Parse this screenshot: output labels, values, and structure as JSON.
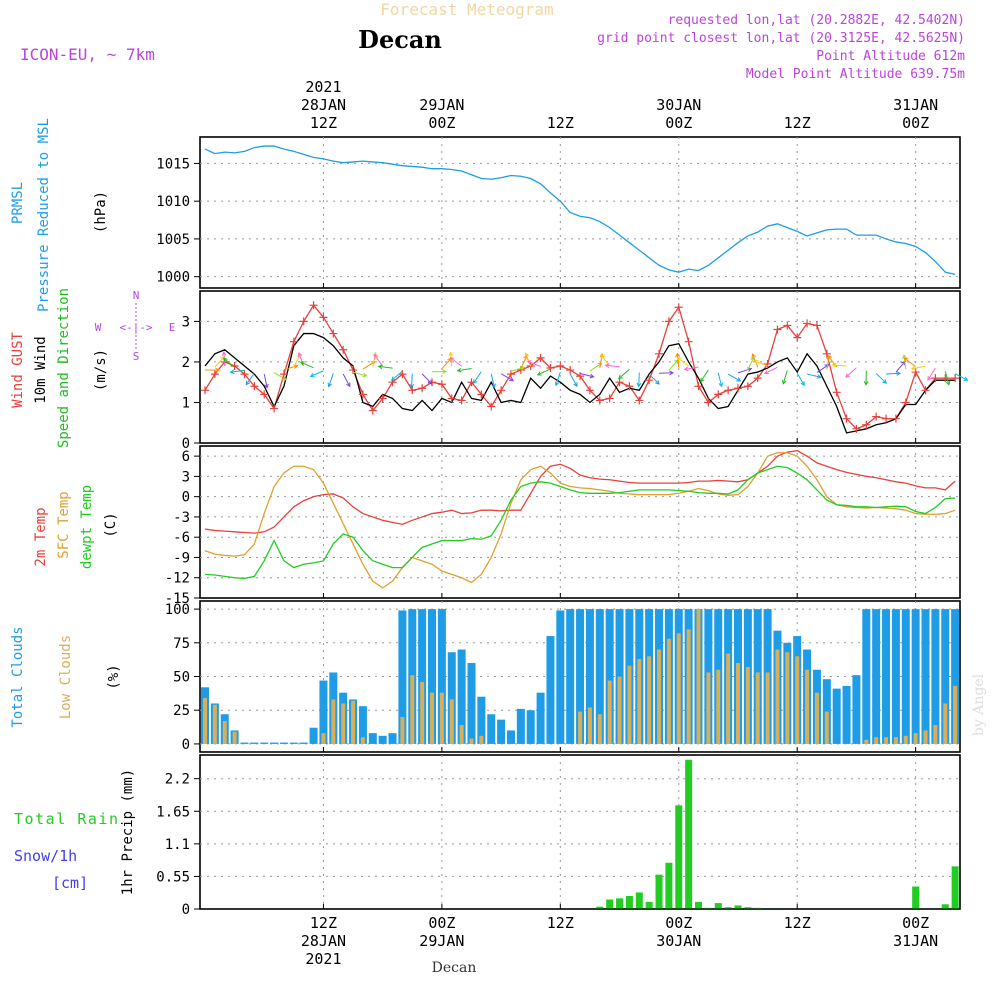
{
  "header": {
    "title": "Forecast Meteogram",
    "location": "Decan",
    "model": "ICON-EU, ~ 7km",
    "info": [
      "requested lon,lat (20.2882E, 42.5402N)",
      "grid point closest lon,lat (20.3125E, 42.5625N)",
      "Point Altitude 612m",
      "Model Point Altitude 639.75m"
    ],
    "credit": "by Angel",
    "bottom_label": "Decan"
  },
  "colors": {
    "pressure": "#1e9de6",
    "gust": "#e8403c",
    "wind": "#000000",
    "dir": "#22bb22",
    "temp2m": "#e8403c",
    "sfc": "#dfa030",
    "dewpt": "#22cc22",
    "total_clouds": "#1e9de6",
    "low_clouds": "#d8ae5a",
    "rain": "#22cc22",
    "snow": "#4040ee",
    "dir_label": "#bb44dd",
    "info": "#bb44dd",
    "title": "#f2d6a2"
  },
  "time_axis": {
    "top_labels": [
      {
        "t": 12,
        "lines": [
          "2021",
          "28JAN",
          "12Z"
        ]
      },
      {
        "t": 24,
        "lines": [
          "29JAN",
          "00Z"
        ]
      },
      {
        "t": 36,
        "lines": [
          "12Z"
        ]
      },
      {
        "t": 48,
        "lines": [
          "30JAN",
          "00Z"
        ]
      },
      {
        "t": 60,
        "lines": [
          "12Z"
        ]
      },
      {
        "t": 72,
        "lines": [
          "31JAN",
          "00Z"
        ]
      }
    ],
    "bottom_labels": [
      {
        "t": 12,
        "lines": [
          "12Z",
          "28JAN",
          "2021"
        ]
      },
      {
        "t": 24,
        "lines": [
          "00Z",
          "29JAN"
        ]
      },
      {
        "t": 36,
        "lines": [
          "12Z"
        ]
      },
      {
        "t": 48,
        "lines": [
          "00Z",
          "30JAN"
        ]
      },
      {
        "t": 60,
        "lines": [
          "12Z"
        ]
      },
      {
        "t": 72,
        "lines": [
          "00Z",
          "31JAN"
        ]
      }
    ]
  },
  "chart_data": [
    {
      "type": "line",
      "panel": "pressure",
      "labels": [
        "PRMSL",
        "Pressure Reduced to MSL"
      ],
      "ylabel": "(hPa)",
      "yticks": [
        1000,
        1005,
        1010,
        1015
      ],
      "ylim": [
        998.5,
        1018.5
      ],
      "x": [
        0,
        1,
        2,
        3,
        4,
        5,
        6,
        7,
        8,
        9,
        10,
        11,
        12,
        13,
        14,
        15,
        16,
        17,
        18,
        19,
        20,
        21,
        22,
        23,
        24,
        25,
        26,
        27,
        28,
        29,
        30,
        31,
        32,
        33,
        34,
        35,
        36,
        37,
        38,
        39,
        40,
        41,
        42,
        43,
        44,
        45,
        46,
        47,
        48,
        49,
        50,
        51,
        52,
        53,
        54,
        55,
        56,
        57,
        58,
        59,
        60,
        61,
        62,
        63,
        64,
        65,
        66,
        67,
        68,
        69,
        70,
        71,
        72,
        73,
        74,
        75,
        76
      ],
      "series": [
        {
          "values": [
            1016.9,
            1016.3,
            1016.5,
            1016.4,
            1016.6,
            1017.1,
            1017.3,
            1017.3,
            1016.9,
            1016.6,
            1016.2,
            1015.8,
            1015.6,
            1015.3,
            1015.1,
            1015.2,
            1015.3,
            1015.2,
            1015.1,
            1014.9,
            1014.7,
            1014.6,
            1014.5,
            1014.3,
            1014.3,
            1014.2,
            1014.0,
            1013.5,
            1013.0,
            1012.9,
            1013.1,
            1013.4,
            1013.3,
            1013.0,
            1012.3,
            1011.1,
            1010.0,
            1008.5,
            1008.0,
            1007.8,
            1007.3,
            1006.5,
            1005.5,
            1004.5,
            1003.5,
            1002.5,
            1001.5,
            1000.9,
            1000.6,
            1001.0,
            1000.8,
            1001.5,
            1002.5,
            1003.5,
            1004.5,
            1005.4,
            1005.9,
            1006.7,
            1007.0,
            1006.5,
            1006.0,
            1005.4,
            1005.8,
            1006.2,
            1006.3,
            1006.3,
            1005.5,
            1005.5,
            1005.5,
            1005.0,
            1004.6,
            1004.4,
            1004.0,
            1003.2,
            1002.0,
            1000.6,
            1000.3
          ]
        }
      ]
    },
    {
      "type": "line",
      "panel": "wind",
      "labels": [
        "Wind GUST",
        "10m Wind",
        "Speed and Direction"
      ],
      "ylabel": "(m/s)",
      "yticks": [
        0,
        1,
        2,
        3
      ],
      "ylim": [
        0,
        3.75
      ],
      "dir_legend": {
        "n": "N",
        "s": "S",
        "w": "W",
        "e": "E",
        "arrows": "<-|->"
      },
      "x": [
        0,
        1,
        2,
        3,
        4,
        5,
        6,
        7,
        8,
        9,
        10,
        11,
        12,
        13,
        14,
        15,
        16,
        17,
        18,
        19,
        20,
        21,
        22,
        23,
        24,
        25,
        26,
        27,
        28,
        29,
        30,
        31,
        32,
        33,
        34,
        35,
        36,
        37,
        38,
        39,
        40,
        41,
        42,
        43,
        44,
        45,
        46,
        47,
        48,
        49,
        50,
        51,
        52,
        53,
        54,
        55,
        56,
        57,
        58,
        59,
        60,
        61,
        62,
        63,
        64,
        65,
        66,
        67,
        68,
        69,
        70,
        71,
        72,
        73,
        74,
        75,
        76
      ],
      "series": [
        {
          "name": "Wind GUST",
          "values": [
            1.3,
            1.7,
            2.0,
            1.9,
            1.7,
            1.4,
            1.2,
            0.85,
            1.7,
            2.5,
            3.0,
            3.4,
            3.1,
            2.7,
            2.3,
            1.8,
            1.2,
            0.8,
            1.1,
            1.5,
            1.7,
            1.3,
            1.35,
            1.5,
            1.45,
            1.1,
            1.05,
            1.5,
            1.2,
            0.9,
            1.3,
            1.7,
            1.8,
            1.9,
            2.1,
            1.85,
            1.9,
            1.8,
            1.65,
            1.3,
            1.05,
            1.1,
            1.5,
            1.4,
            1.05,
            1.55,
            2.2,
            3.0,
            3.35,
            2.5,
            1.4,
            1.0,
            1.2,
            1.3,
            1.35,
            1.4,
            1.6,
            1.95,
            2.8,
            2.9,
            2.6,
            2.95,
            2.9,
            2.2,
            1.25,
            0.6,
            0.35,
            0.45,
            0.65,
            0.6,
            0.6,
            1.0,
            1.75,
            1.3,
            1.6,
            1.6,
            1.6
          ]
        },
        {
          "name": "10m Wind",
          "values": [
            1.9,
            2.2,
            2.3,
            2.1,
            1.9,
            1.7,
            1.4,
            0.9,
            1.4,
            2.4,
            2.7,
            2.7,
            2.6,
            2.4,
            2.1,
            1.9,
            1.0,
            0.9,
            1.2,
            1.1,
            0.85,
            0.8,
            1.05,
            0.8,
            1.1,
            1.0,
            1.5,
            1.1,
            1.05,
            1.5,
            1.0,
            1.05,
            1.0,
            1.6,
            1.35,
            1.65,
            1.5,
            1.3,
            1.2,
            1.0,
            1.2,
            1.6,
            1.25,
            1.35,
            1.3,
            1.7,
            2.0,
            2.4,
            2.45,
            2.0,
            1.6,
            1.1,
            0.85,
            0.9,
            1.3,
            1.7,
            1.75,
            1.85,
            2.0,
            2.1,
            1.75,
            2.2,
            1.9,
            1.4,
            0.9,
            0.25,
            0.3,
            0.35,
            0.45,
            0.5,
            0.6,
            0.95,
            0.95,
            1.3,
            1.55,
            1.55,
            1.55
          ]
        }
      ]
    },
    {
      "type": "line",
      "panel": "temperature",
      "labels": [
        "2m Temp",
        "SFC Temp",
        "dewpt Temp"
      ],
      "ylabel": "(C)",
      "yticks": [
        -15,
        -12,
        -9,
        -6,
        -3,
        0,
        3,
        6
      ],
      "ylim": [
        -15,
        7.5
      ],
      "x": [
        0,
        1,
        2,
        3,
        4,
        5,
        6,
        7,
        8,
        9,
        10,
        11,
        12,
        13,
        14,
        15,
        16,
        17,
        18,
        19,
        20,
        21,
        22,
        23,
        24,
        25,
        26,
        27,
        28,
        29,
        30,
        31,
        32,
        33,
        34,
        35,
        36,
        37,
        38,
        39,
        40,
        41,
        42,
        43,
        44,
        45,
        46,
        47,
        48,
        49,
        50,
        51,
        52,
        53,
        54,
        55,
        56,
        57,
        58,
        59,
        60,
        61,
        62,
        63,
        64,
        65,
        66,
        67,
        68,
        69,
        70,
        71,
        72,
        73,
        74,
        75,
        76
      ],
      "series": [
        {
          "name": "2m Temp",
          "values": [
            -4.8,
            -5.0,
            -5.1,
            -5.2,
            -5.3,
            -5.4,
            -5.2,
            -4.5,
            -3.0,
            -1.5,
            -0.6,
            0.0,
            0.3,
            0.4,
            -0.2,
            -1.5,
            -2.5,
            -3.0,
            -3.5,
            -3.8,
            -4.1,
            -3.5,
            -3.0,
            -2.5,
            -2.3,
            -2.0,
            -2.5,
            -2.4,
            -2.0,
            -2.0,
            -2.1,
            -2.0,
            -2.0,
            0.5,
            3.0,
            4.5,
            4.8,
            4.2,
            3.2,
            2.8,
            2.6,
            2.5,
            2.3,
            2.1,
            2.0,
            2.0,
            2.0,
            2.0,
            2.0,
            2.1,
            2.3,
            2.3,
            2.4,
            2.3,
            2.2,
            2.5,
            3.5,
            4.5,
            6.0,
            6.6,
            6.8,
            6.0,
            5.0,
            4.5,
            4.0,
            3.6,
            3.3,
            3.0,
            2.8,
            2.5,
            2.2,
            2.0,
            1.6,
            1.3,
            1.3,
            1.0,
            2.3
          ]
        },
        {
          "name": "SFC Temp",
          "values": [
            -8.0,
            -8.5,
            -8.7,
            -8.8,
            -8.6,
            -7.0,
            -2.5,
            1.5,
            3.5,
            4.5,
            4.5,
            4.0,
            2.0,
            -1.0,
            -4.0,
            -7.0,
            -10.0,
            -12.5,
            -13.5,
            -12.5,
            -10.5,
            -9.0,
            -9.5,
            -10.0,
            -11.0,
            -11.5,
            -12.0,
            -12.7,
            -11.5,
            -9.0,
            -5.5,
            -1.0,
            2.5,
            4.0,
            4.5,
            3.5,
            2.0,
            1.5,
            1.3,
            1.2,
            1.0,
            0.8,
            0.5,
            0.4,
            0.3,
            0.3,
            0.3,
            0.3,
            0.5,
            0.8,
            1.2,
            0.9,
            0.4,
            0.2,
            0.3,
            1.5,
            3.5,
            6.0,
            6.5,
            6.5,
            6.0,
            4.5,
            2.5,
            0.0,
            -1.2,
            -1.5,
            -1.6,
            -1.7,
            -1.6,
            -1.7,
            -1.8,
            -2.0,
            -2.5,
            -2.6,
            -2.6,
            -2.5,
            -2.0
          ]
        },
        {
          "name": "dewpt Temp",
          "values": [
            -11.5,
            -11.6,
            -11.8,
            -12.0,
            -12.1,
            -11.8,
            -9.5,
            -6.5,
            -9.5,
            -10.5,
            -10.0,
            -9.8,
            -9.5,
            -7.0,
            -5.5,
            -6.0,
            -8.0,
            -9.5,
            -10.0,
            -10.5,
            -10.5,
            -9.0,
            -7.5,
            -7.0,
            -6.5,
            -6.5,
            -6.5,
            -6.2,
            -6.3,
            -5.8,
            -3.5,
            -0.5,
            1.5,
            2.0,
            2.2,
            2.0,
            1.5,
            1.0,
            0.6,
            0.5,
            0.5,
            0.5,
            0.6,
            0.8,
            1.0,
            1.0,
            1.0,
            1.0,
            0.9,
            0.8,
            0.6,
            0.5,
            0.5,
            0.4,
            1.0,
            2.5,
            3.5,
            4.0,
            4.5,
            4.3,
            3.5,
            2.5,
            1.0,
            -0.5,
            -1.2,
            -1.3,
            -1.5,
            -1.5,
            -1.6,
            -1.5,
            -1.4,
            -1.5,
            -2.2,
            -2.5,
            -1.6,
            -0.3,
            -0.2
          ]
        }
      ]
    },
    {
      "type": "bar",
      "panel": "clouds",
      "labels": [
        "Total Clouds",
        "Low Clouds"
      ],
      "ylabel": "(%)",
      "yticks": [
        0,
        25,
        50,
        75,
        100
      ],
      "ylim": [
        -6,
        106
      ],
      "x": [
        0,
        1,
        2,
        3,
        4,
        5,
        6,
        7,
        8,
        9,
        10,
        11,
        12,
        13,
        14,
        15,
        16,
        17,
        18,
        19,
        20,
        21,
        22,
        23,
        24,
        25,
        26,
        27,
        28,
        29,
        30,
        31,
        32,
        33,
        34,
        35,
        36,
        37,
        38,
        39,
        40,
        41,
        42,
        43,
        44,
        45,
        46,
        47,
        48,
        49,
        50,
        51,
        52,
        53,
        54,
        55,
        56,
        57,
        58,
        59,
        60,
        61,
        62,
        63,
        64,
        65,
        66,
        67,
        68,
        69,
        70,
        71,
        72,
        73,
        74,
        75,
        76
      ],
      "series": [
        {
          "name": "Total Clouds",
          "values": [
            42,
            30,
            22,
            10,
            1,
            1,
            1,
            1,
            1,
            1,
            1,
            12,
            47,
            53,
            38,
            33,
            28,
            8,
            6,
            8,
            99,
            100,
            100,
            100,
            100,
            68,
            70,
            60,
            35,
            22,
            18,
            10,
            26,
            25,
            38,
            80,
            99,
            100,
            100,
            100,
            100,
            100,
            100,
            100,
            100,
            100,
            100,
            100,
            100,
            100,
            100,
            100,
            100,
            100,
            100,
            100,
            100,
            100,
            84,
            75,
            80,
            70,
            55,
            48,
            41,
            43,
            51,
            100,
            100,
            100,
            100,
            100,
            100,
            100,
            100,
            100,
            100
          ]
        },
        {
          "name": "Low Clouds",
          "values": [
            34,
            29,
            17,
            9,
            0,
            0,
            0,
            0,
            0,
            0,
            0,
            0,
            8,
            33,
            30,
            32,
            5,
            0,
            0,
            0,
            20,
            51,
            46,
            38,
            38,
            33,
            14,
            4,
            6,
            0,
            0,
            0,
            0,
            0,
            0,
            0,
            0,
            0,
            24,
            27,
            22,
            47,
            50,
            58,
            63,
            65,
            70,
            78,
            82,
            85,
            100,
            53,
            55,
            67,
            60,
            57,
            53,
            53,
            70,
            68,
            65,
            55,
            38,
            24,
            0,
            0,
            0,
            3,
            5,
            5,
            5,
            6,
            8,
            10,
            14,
            30,
            43
          ]
        }
      ]
    },
    {
      "type": "bar",
      "panel": "precip",
      "labels": [
        "Total Rain",
        "Snow/1h",
        "[cm]"
      ],
      "ylabel": "1hr Precip (mm)",
      "yticks": [
        "0",
        "0.55",
        "1.1",
        "1.65",
        "2.2"
      ],
      "ylim": [
        0,
        2.6
      ],
      "series": [
        {
          "name": "Total Rain",
          "x": [
            40,
            41,
            42,
            43,
            44,
            45,
            46,
            47,
            48,
            49,
            50,
            51,
            52,
            53,
            54,
            55,
            56,
            58,
            71,
            72,
            75,
            76
          ],
          "values": [
            0.04,
            0.16,
            0.18,
            0.22,
            0.28,
            0.12,
            0.58,
            0.78,
            1.75,
            2.52,
            0.12,
            0.02,
            0.1,
            0.03,
            0.06,
            0.03,
            0.02,
            0.01,
            0.0,
            0.38,
            0.08,
            0.72
          ]
        }
      ]
    }
  ]
}
